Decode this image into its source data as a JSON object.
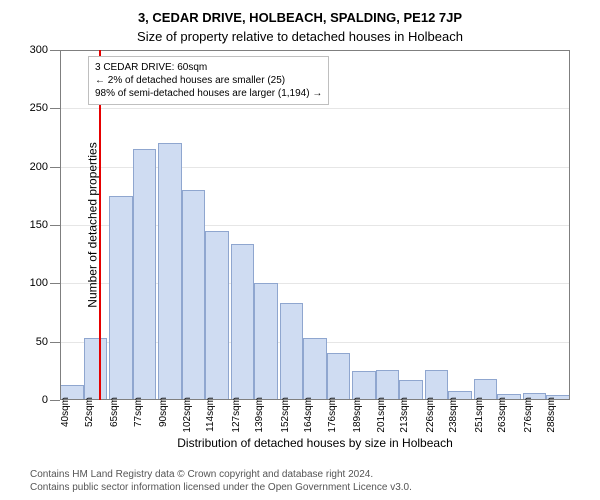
{
  "title": {
    "address": "3, CEDAR DRIVE, HOLBEACH, SPALDING, PE12 7JP",
    "subtitle": "Size of property relative to detached houses in Holbeach"
  },
  "chart": {
    "type": "histogram",
    "ylabel": "Number of detached properties",
    "xlabel": "Distribution of detached houses by size in Holbeach",
    "ylim": [
      0,
      300
    ],
    "ytick_step": 50,
    "label_fontsize": 12,
    "tick_fontsize": 11,
    "background_color": "#ffffff",
    "grid_color": "#e6e6e6",
    "border_color": "#7f7f7f",
    "bar_fill": "#cfdcf2",
    "bar_stroke": "#8fa6cf",
    "marker_color": "#e60000",
    "marker_x_sqm": 60,
    "x_categories": [
      "40sqm",
      "52sqm",
      "65sqm",
      "77sqm",
      "90sqm",
      "102sqm",
      "114sqm",
      "127sqm",
      "139sqm",
      "152sqm",
      "164sqm",
      "176sqm",
      "189sqm",
      "201sqm",
      "213sqm",
      "226sqm",
      "238sqm",
      "251sqm",
      "263sqm",
      "276sqm",
      "288sqm"
    ],
    "x_values_sqm": [
      40,
      52,
      65,
      77,
      90,
      102,
      114,
      127,
      139,
      152,
      164,
      176,
      189,
      201,
      213,
      226,
      238,
      251,
      263,
      276,
      288
    ],
    "bar_values": [
      13,
      53,
      175,
      215,
      220,
      180,
      145,
      134,
      100,
      83,
      53,
      40,
      25,
      26,
      17,
      26,
      8,
      18,
      5,
      6,
      4
    ]
  },
  "annotation": {
    "line1": "3 CEDAR DRIVE: 60sqm",
    "line2": "← 2% of detached houses are smaller (25)",
    "line3": "98% of semi-detached houses are larger (1,194) →"
  },
  "footer": {
    "line1": "Contains HM Land Registry data © Crown copyright and database right 2024.",
    "line2": "Contains public sector information licensed under the Open Government Licence v3.0."
  }
}
